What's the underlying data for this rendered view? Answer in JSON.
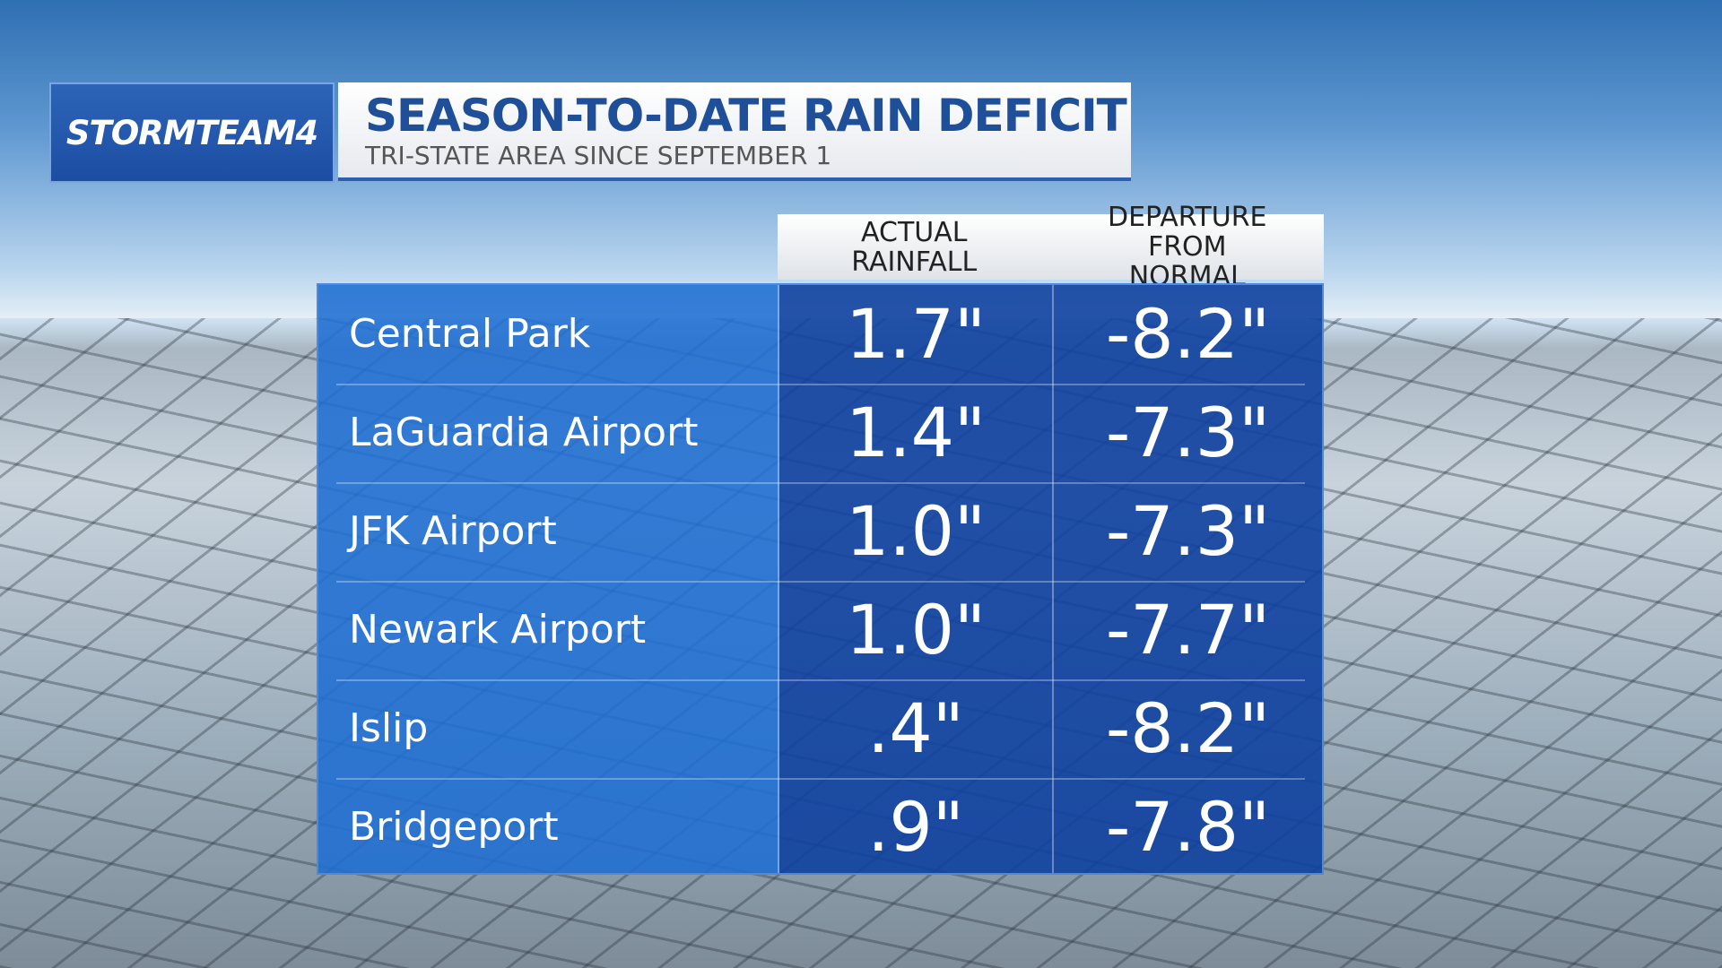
{
  "header": {
    "brand": "STORMTEAM4",
    "title": "SEASON-TO-DATE RAIN DEFICIT",
    "subtitle": "TRI-STATE AREA SINCE SEPTEMBER 1"
  },
  "table": {
    "columns": [
      "ACTUAL RAINFALL",
      "DEPARTURE FROM NORMAL"
    ],
    "rows": [
      [
        "Central Park",
        "1.7\"",
        "-8.2\""
      ],
      [
        "LaGuardia Airport",
        "1.4\"",
        "-7.3\""
      ],
      [
        "JFK Airport",
        "1.0\"",
        "-7.3\""
      ],
      [
        "Newark Airport",
        "1.0\"",
        "-7.7\""
      ],
      [
        "Islip",
        ".4\"",
        "-8.2\""
      ],
      [
        "Bridgeport",
        ".9\"",
        "-7.8\""
      ]
    ]
  }
}
